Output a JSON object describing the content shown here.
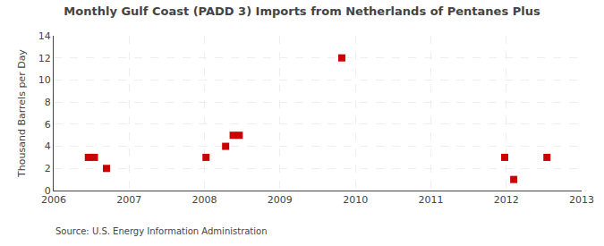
{
  "chart_data": {
    "type": "scatter",
    "title": "Monthly Gulf Coast (PADD 3) Imports from Netherlands of Pentanes Plus",
    "y_label": "Thousand Barrels per Day",
    "annotations": [
      "Source: U.S. Energy Information Administration"
    ],
    "x": [
      2006.46,
      2006.54,
      2006.7,
      2008.02,
      2008.28,
      2008.38,
      2008.46,
      2009.82,
      2011.98,
      2012.1,
      2012.54
    ],
    "values": [
      3,
      3,
      2,
      3,
      4,
      5,
      5,
      12,
      3,
      1,
      3
    ],
    "color": "#cc0000",
    "marker": "square",
    "xlim": [
      2006,
      2013
    ],
    "ylim": [
      0,
      14
    ],
    "xticks": [
      2006,
      2007,
      2008,
      2009,
      2010,
      2011,
      2012,
      2013
    ],
    "yticks": [
      0,
      2,
      4,
      6,
      8,
      10,
      12,
      14
    ],
    "grid": true
  }
}
